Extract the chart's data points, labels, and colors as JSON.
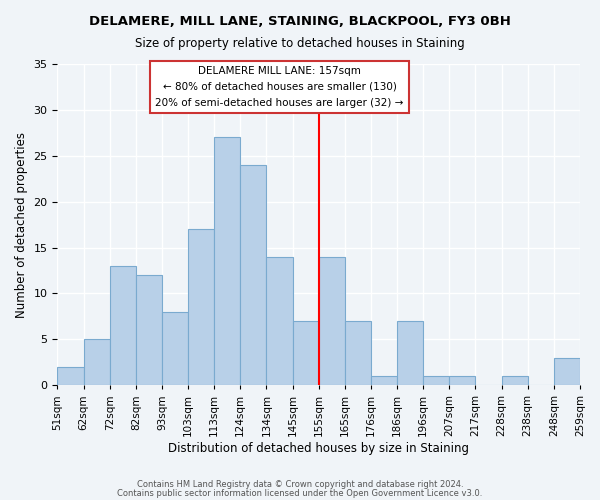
{
  "title1": "DELAMERE, MILL LANE, STAINING, BLACKPOOL, FY3 0BH",
  "title2": "Size of property relative to detached houses in Staining",
  "xlabel": "Distribution of detached houses by size in Staining",
  "ylabel": "Number of detached properties",
  "bin_labels": [
    "51sqm",
    "62sqm",
    "72sqm",
    "82sqm",
    "93sqm",
    "103sqm",
    "113sqm",
    "124sqm",
    "134sqm",
    "145sqm",
    "155sqm",
    "165sqm",
    "176sqm",
    "186sqm",
    "196sqm",
    "207sqm",
    "217sqm",
    "228sqm",
    "238sqm",
    "248sqm",
    "259sqm"
  ],
  "bar_values": [
    2,
    5,
    13,
    12,
    8,
    17,
    27,
    24,
    14,
    7,
    14,
    7,
    1,
    7,
    1,
    1,
    0,
    1,
    0,
    3
  ],
  "bar_color": "#b8d0e8",
  "bar_edge_color": "#7aaacf",
  "highlight_line_x_label": "155sqm",
  "annotation_title": "DELAMERE MILL LANE: 157sqm",
  "annotation_line1": "← 80% of detached houses are smaller (130)",
  "annotation_line2": "20% of semi-detached houses are larger (32) →",
  "ylim": [
    0,
    35
  ],
  "yticks": [
    0,
    5,
    10,
    15,
    20,
    25,
    30,
    35
  ],
  "footer1": "Contains HM Land Registry data © Crown copyright and database right 2024.",
  "footer2": "Contains public sector information licensed under the Open Government Licence v3.0.",
  "background_color": "#f0f4f8"
}
